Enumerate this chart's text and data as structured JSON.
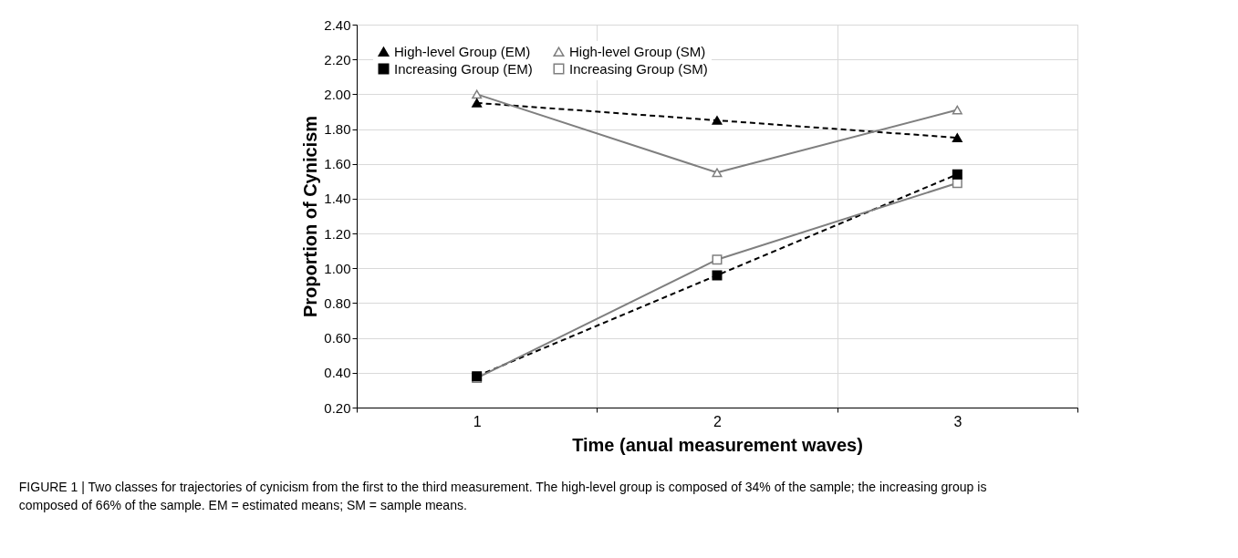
{
  "chart_data": {
    "type": "line",
    "xlabel": "Time (anual measurement waves)",
    "ylabel": "Proportion of Cynicism",
    "categories": [
      "1",
      "2",
      "3"
    ],
    "series": [
      {
        "name": "High-level Group (EM)",
        "color": "#000000",
        "marker": "triangle",
        "line_style": "dashed",
        "values": [
          1.95,
          1.85,
          1.75
        ]
      },
      {
        "name": "High-level Group (SM)",
        "color": "#7f7f7f",
        "marker": "triangle",
        "line_style": "solid",
        "values": [
          2.0,
          1.55,
          1.91
        ]
      },
      {
        "name": "Increasing Group (EM)",
        "color": "#000000",
        "marker": "square",
        "line_style": "dashed",
        "values": [
          0.38,
          0.96,
          1.54
        ]
      },
      {
        "name": "Increasing Group (SM)",
        "color": "#7f7f7f",
        "marker": "square",
        "line_style": "solid",
        "values": [
          0.37,
          1.05,
          1.49
        ]
      }
    ],
    "ylim": [
      0.2,
      2.4
    ],
    "yticks": [
      {
        "value": 0.2,
        "label": "0.20"
      },
      {
        "value": 0.4,
        "label": "0.40"
      },
      {
        "value": 0.6,
        "label": "0.60"
      },
      {
        "value": 0.8,
        "label": "0.80"
      },
      {
        "value": 1.0,
        "label": "1.00"
      },
      {
        "value": 1.2,
        "label": "1.20"
      },
      {
        "value": 1.4,
        "label": "1.40"
      },
      {
        "value": 1.6,
        "label": "1.60"
      },
      {
        "value": 1.8,
        "label": "1.80"
      },
      {
        "value": 2.0,
        "label": "2.00"
      },
      {
        "value": 2.2,
        "label": "2.20"
      },
      {
        "value": 2.4,
        "label": "2.40"
      }
    ],
    "grid": true,
    "legend": "top left",
    "annotations": [
      "FIGURE 1 | Two classes for trajectories of cynicism from the first to the third measurement. The high-level group is composed of 34% of the sample; the increasing group is composed of 66% of the sample. EM = estimated means; SM = sample means."
    ]
  }
}
